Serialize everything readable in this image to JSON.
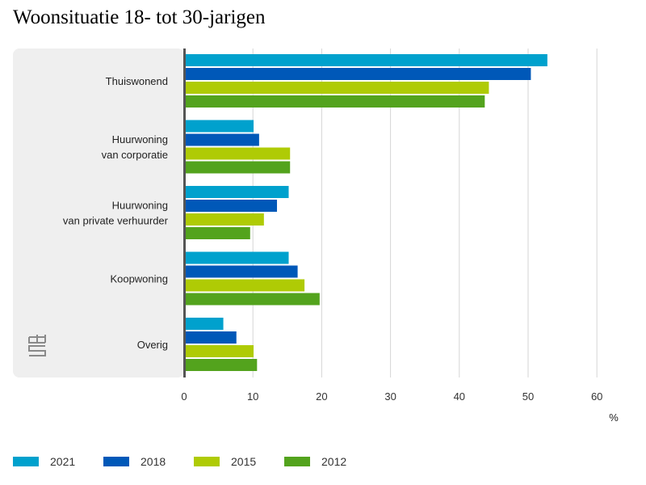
{
  "chart_data": {
    "type": "bar",
    "orientation": "horizontal",
    "title": "Woonsituatie 18- tot 30-jarigen",
    "xlabel": "%",
    "ylabel": "",
    "xlim": [
      0,
      60
    ],
    "xticks": [
      "0",
      "10",
      "20",
      "30",
      "40",
      "50",
      "60"
    ],
    "categories": [
      [
        "Thuiswonend"
      ],
      [
        "Huurwoning",
        "van corporatie"
      ],
      [
        "Huurwoning",
        "van private verhuurder"
      ],
      [
        "Koopwoning"
      ],
      [
        "Overig"
      ]
    ],
    "series": [
      {
        "name": "2021",
        "color": "#00a1cd",
        "values": [
          52.8,
          10.1,
          15.2,
          15.2,
          5.7
        ]
      },
      {
        "name": "2018",
        "color": "#0058b8",
        "values": [
          50.4,
          10.9,
          13.5,
          16.5,
          7.6
        ]
      },
      {
        "name": "2015",
        "color": "#afcb05",
        "values": [
          44.3,
          15.4,
          11.6,
          17.5,
          10.1
        ]
      },
      {
        "name": "2012",
        "color": "#53a31d",
        "values": [
          43.7,
          15.4,
          9.6,
          19.7,
          10.6
        ]
      }
    ],
    "grid": true,
    "legend_position": "bottom"
  },
  "logo": {
    "text": "cbs"
  }
}
